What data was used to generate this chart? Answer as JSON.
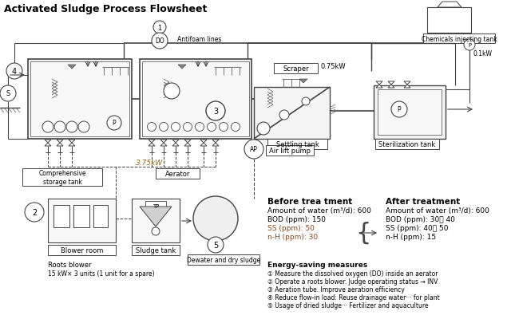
{
  "title": "Activated Sludge Process Flowsheet",
  "title_fontsize": 9,
  "title_fontweight": "bold",
  "bg_color": "#ffffff",
  "lc": "#444444",
  "tc": "#000000",
  "fig_width": 6.4,
  "fig_height": 4.06,
  "dpi": 100,
  "labels": {
    "antifoam_lines": "Antifoam lines",
    "scraper": "Scraper",
    "scraper_kw": "0.75kW",
    "settling_tank": "Settling tank",
    "sterilization_tank": "Sterilization tank",
    "air_lift_pump": "Air lift pump",
    "comprehensive_storage": "Comprehensive\nstorage tank",
    "aerator": "Aerator",
    "blower_room": "Blower room",
    "sludge_tank": "Sludge tank",
    "dewater": "Dewater and dry sludge",
    "power_375": "3.75kW",
    "power_01": "0.1kW",
    "chemicals_tank": "Chemicals injecting tank",
    "roots_blower_title": "Roots blower",
    "roots_blower_detail": "15 kW× 3 units (1 unit for a spare)",
    "energy_saving_title": "Energy-saving measures",
    "energy1": "① Measure the dissolved oxygen (DO) inside an aerator",
    "energy2": "② Operate a roots blower. Judge operating status → INV",
    "energy3": "③ Aeration tube. Improve aeration efficiency",
    "energy4": "④ Reduce flow-in load: Reuse drainage water··· for plant",
    "energy5": "⑤ Usage of dried sludge··· Fertilizer and aquaculture",
    "before_treatment": "Before trea tment",
    "before_water": "Amount of water (m³/d): 600",
    "before_bod": "BOD (ppm): 150",
    "before_ss": "SS (ppm): 50",
    "before_nh": "n-H (ppm): 30",
    "after_treatment": "After treatment",
    "after_water": "Amount of water (m³/d): 600",
    "after_bod": "BOD (ppm): 30～ 40",
    "after_ss": "SS (ppm): 40～ 50",
    "after_nh": "n-H (ppm): 15"
  }
}
